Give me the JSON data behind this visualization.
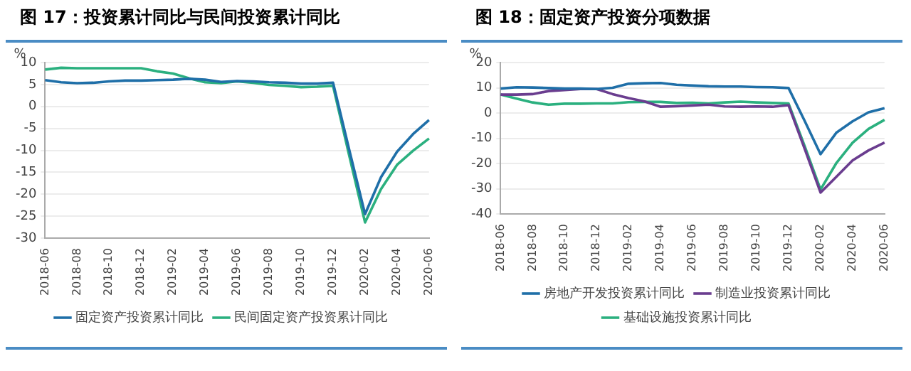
{
  "chart_data": [
    {
      "type": "line",
      "title": "图 17：投资累计同比与民间投资累计同比",
      "ylabel": "%",
      "categories": [
        "2018-06",
        null,
        "2018-08",
        null,
        "2018-10",
        null,
        "2018-12",
        null,
        "2019-02",
        null,
        "2019-04",
        null,
        "2019-06",
        null,
        "2019-08",
        null,
        "2019-10",
        null,
        "2019-12",
        null,
        "2020-02",
        null,
        "2020-04",
        null,
        "2020-06"
      ],
      "ylim": [
        -30,
        10
      ],
      "yticks": [
        -30,
        -25,
        -20,
        -15,
        -10,
        -5,
        0,
        5,
        10
      ],
      "grid": "y",
      "legend": "bottom",
      "marker": "none",
      "series": [
        {
          "name": "固定资产投资累计同比",
          "color": "#1f6fa8",
          "values": [
            6.0,
            5.5,
            5.3,
            5.4,
            5.7,
            5.9,
            5.9,
            6.0,
            6.1,
            6.3,
            6.1,
            5.6,
            5.8,
            5.7,
            5.5,
            5.4,
            5.2,
            5.2,
            5.4,
            -9.7,
            -24.5,
            -16.1,
            -10.3,
            -6.3,
            -3.1
          ]
        },
        {
          "name": "民间固定资产投资累计同比",
          "color": "#2bb07f",
          "values": [
            8.4,
            8.8,
            8.7,
            8.7,
            8.7,
            8.7,
            8.7,
            8.0,
            7.5,
            6.4,
            5.5,
            5.3,
            5.7,
            5.4,
            4.9,
            4.7,
            4.4,
            4.5,
            4.7,
            -11,
            -26.4,
            -18.8,
            -13.3,
            -10.1,
            -7.3
          ]
        }
      ]
    },
    {
      "type": "line",
      "title": "图 18：固定资产投资分项数据",
      "ylabel": "%",
      "categories": [
        "2018-06",
        null,
        "2018-08",
        null,
        "2018-10",
        null,
        "2018-12",
        null,
        "2019-02",
        null,
        "2019-04",
        null,
        "2019-06",
        null,
        "2019-08",
        null,
        "2019-10",
        null,
        "2019-12",
        null,
        "2020-02",
        null,
        "2020-04",
        null,
        "2020-06"
      ],
      "ylim": [
        -40,
        20
      ],
      "yticks": [
        -40,
        -30,
        -20,
        -10,
        0,
        10,
        20
      ],
      "grid": "y",
      "legend": "bottom",
      "marker": "none",
      "series": [
        {
          "name": "房地产开发投资累计同比",
          "color": "#1f6fa8",
          "values": [
            9.7,
            10.2,
            10.1,
            9.9,
            9.7,
            9.7,
            9.5,
            10.0,
            11.6,
            11.8,
            11.9,
            11.2,
            10.9,
            10.6,
            10.5,
            10.5,
            10.3,
            10.2,
            9.9,
            -3,
            -16.3,
            -7.7,
            -3.3,
            0.3,
            1.9
          ]
        },
        {
          "name": "制造业投资累计同比",
          "color": "#6a3d8f",
          "values": [
            7.3,
            7.3,
            7.5,
            8.7,
            9.1,
            9.5,
            9.5,
            7.5,
            5.9,
            4.6,
            2.5,
            2.7,
            3.0,
            3.3,
            2.6,
            2.5,
            2.6,
            2.5,
            3.1,
            -14,
            -31.5,
            -25.2,
            -18.8,
            -14.8,
            -11.7
          ]
        },
        {
          "name": "基础设施投资累计同比",
          "color": "#2bb07f",
          "values": [
            7.3,
            5.7,
            4.2,
            3.3,
            3.7,
            3.7,
            3.8,
            3.8,
            4.3,
            4.4,
            4.4,
            4.0,
            4.1,
            3.8,
            4.2,
            4.5,
            4.2,
            4.0,
            3.8,
            -13,
            -30.3,
            -19.7,
            -11.8,
            -6.3,
            -2.7
          ]
        }
      ]
    }
  ]
}
